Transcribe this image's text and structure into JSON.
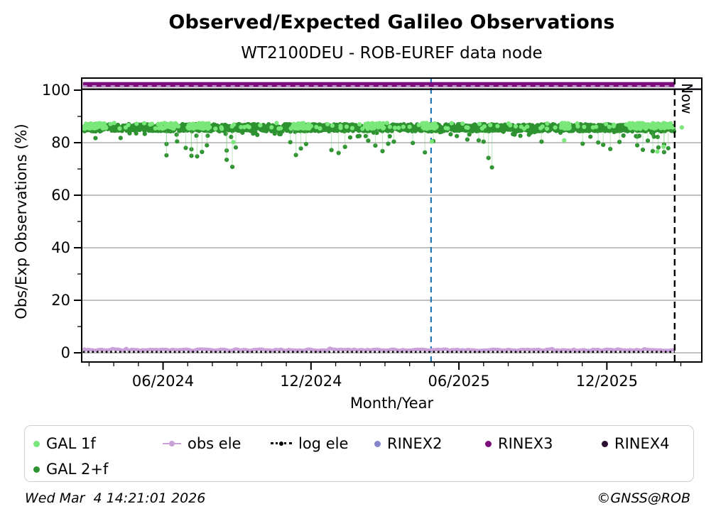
{
  "chart_data": {
    "type": "scatter",
    "title": "Observed/Expected Galileo Observations",
    "subtitle": "WT2100DEU - ROB-EUREF data node",
    "xlabel": "Month/Year",
    "ylabel": "Obs/Exp Observations (%)",
    "x_unit": "months since 2024-03-01",
    "xlim": [
      -0.3,
      24.85
    ],
    "ylim": [
      -3.5,
      104.6
    ],
    "xticks": [
      {
        "m": 3,
        "label": "06/2024"
      },
      {
        "m": 9,
        "label": "12/2024"
      },
      {
        "m": 15,
        "label": "06/2025"
      },
      {
        "m": 21,
        "label": "12/2025"
      }
    ],
    "xminor_step": 1,
    "yticks": [
      0,
      20,
      40,
      60,
      80,
      100
    ],
    "yminor_step": 10,
    "gridlines_y": [
      0,
      20,
      40,
      60,
      80
    ],
    "grid_color": "#b3b3b3",
    "frame_color": "#000000",
    "vlines": [
      {
        "key": "check-date",
        "m": 13.87,
        "color": "#1f77b4",
        "dashed": true,
        "label": ""
      },
      {
        "key": "now",
        "m": 23.75,
        "color": "#000000",
        "dashed": true,
        "label": "Now"
      }
    ],
    "series": [
      {
        "name": "RINEX3",
        "kind": "hband",
        "y": 102.15,
        "x": [
          -0.25,
          23.75
        ],
        "color": "#7b0d7b",
        "px": 7
      },
      {
        "name": "RINEX2",
        "kind": "hdash",
        "y": 101.6,
        "x": [
          -0.25,
          23.75
        ],
        "color": "#d8c6ea",
        "px": 1.5,
        "dash": [
          6,
          7
        ]
      },
      {
        "name": "100% reference",
        "kind": "hline",
        "y": 100.35,
        "x": [
          -0.3,
          24.85
        ],
        "color": "#0d0a12",
        "px": 2.4
      },
      {
        "name": "GAL 2+f",
        "kind": "scatter",
        "color": "#2e9230",
        "r": 3.1,
        "seed": 7,
        "baseline": {
          "m": [
            -0.2,
            23.75
          ],
          "per_day": 2.2,
          "mean": 85.7,
          "jitter": 1.35,
          "low_tail_p": 0.06,
          "low_tail_max": 2.8
        },
        "stem_color": "rgba(120,200,120,0.40)",
        "stem_top": 84.2,
        "outliers": [
          [
            3.14,
            79.5
          ],
          [
            3.14,
            75.2
          ],
          [
            3.57,
            80.5
          ],
          [
            3.92,
            78.0
          ],
          [
            4.15,
            75.0
          ],
          [
            4.15,
            77.5
          ],
          [
            4.38,
            74.8
          ],
          [
            4.58,
            76.5
          ],
          [
            4.78,
            79.0
          ],
          [
            5.58,
            73.5
          ],
          [
            5.58,
            77.0
          ],
          [
            5.81,
            70.8
          ],
          [
            5.95,
            78.2
          ],
          [
            8.16,
            80.2
          ],
          [
            8.39,
            75.3
          ],
          [
            8.59,
            77.8
          ],
          [
            8.8,
            79.5
          ],
          [
            9.83,
            77.2
          ],
          [
            10.12,
            76.1
          ],
          [
            10.38,
            78.4
          ],
          [
            11.32,
            80.8
          ],
          [
            11.61,
            78.9
          ],
          [
            11.9,
            76.8
          ],
          [
            12.13,
            79.6
          ],
          [
            12.36,
            80.4
          ],
          [
            13.13,
            79.9
          ],
          [
            13.62,
            76.3
          ],
          [
            13.96,
            80.6
          ],
          [
            15.34,
            81.2
          ],
          [
            15.8,
            80.9
          ],
          [
            16.0,
            80.4
          ],
          [
            16.2,
            74.2
          ],
          [
            16.34,
            70.6
          ],
          [
            18.35,
            80.4
          ],
          [
            20.02,
            79.6
          ],
          [
            20.65,
            80.1
          ],
          [
            20.85,
            79.2
          ],
          [
            21.14,
            77.6
          ],
          [
            21.51,
            80.3
          ],
          [
            22.23,
            79.0
          ],
          [
            22.23,
            82.3
          ],
          [
            22.46,
            77.3
          ],
          [
            22.66,
            80.8
          ],
          [
            22.86,
            76.8
          ],
          [
            23.09,
            78.2
          ],
          [
            23.32,
            76.4
          ],
          [
            23.32,
            79.3
          ],
          [
            23.49,
            77.9
          ]
        ]
      },
      {
        "name": "GAL 1f",
        "kind": "scatter",
        "color": "#7ae77a",
        "r": 3.1,
        "seed": 13,
        "clusters": [
          [
            -0.2,
            0.7
          ],
          [
            2.8,
            3.5
          ],
          [
            4.0,
            4.9
          ],
          [
            8.3,
            8.95
          ],
          [
            11.2,
            11.95
          ],
          [
            13.5,
            14.1
          ],
          [
            19.15,
            19.5
          ],
          [
            21.9,
            23.6
          ]
        ],
        "cluster_mean": 86.4,
        "cluster_jitter": 1.1,
        "per_day": 1.8,
        "sparse": {
          "m": [
            -0.1,
            23.7
          ],
          "per_day": 0.15
        },
        "outliers": [
          [
            5.85,
            80.2
          ],
          [
            13.9,
            80.4
          ],
          [
            19.27,
            80.9
          ],
          [
            23.05,
            76.6
          ],
          [
            23.3,
            78.5
          ]
        ]
      },
      {
        "name": "obs ele",
        "kind": "wiggle",
        "y": 0.85,
        "amp": 0.55,
        "x": [
          -0.25,
          23.75
        ],
        "color": "#c9a0d8",
        "px": 4.8,
        "seed": 3
      },
      {
        "name": "log ele",
        "kind": "hdots",
        "y": 0.35,
        "x": [
          -0.25,
          23.75
        ],
        "color": "#000000",
        "px": 2.7,
        "dash": [
          2.6,
          3.8
        ]
      }
    ]
  },
  "legend": {
    "items": [
      {
        "key": "gal-1f",
        "label": "GAL 1f",
        "color": "#7ae77a",
        "glyph": "dot"
      },
      {
        "key": "obs-ele",
        "label": "obs ele",
        "color": "#c9a0d8",
        "glyph": "line-dot"
      },
      {
        "key": "log-ele",
        "label": "log ele",
        "color": "#000000",
        "glyph": "dotted-line"
      },
      {
        "key": "rinex2",
        "label": "RINEX2",
        "color": "#8585cc",
        "glyph": "dot"
      },
      {
        "key": "rinex3",
        "label": "RINEX3",
        "color": "#7b0d7b",
        "glyph": "dot"
      },
      {
        "key": "rinex4",
        "label": "RINEX4",
        "color": "#2a0f33",
        "glyph": "dot"
      },
      {
        "key": "gal-2f",
        "label": "GAL 2+f",
        "color": "#2e9230",
        "glyph": "dot"
      }
    ]
  },
  "footer": {
    "timestamp": "Wed Mar  4 14:21:01 2026",
    "copyright": "©GNSS@ROB"
  }
}
